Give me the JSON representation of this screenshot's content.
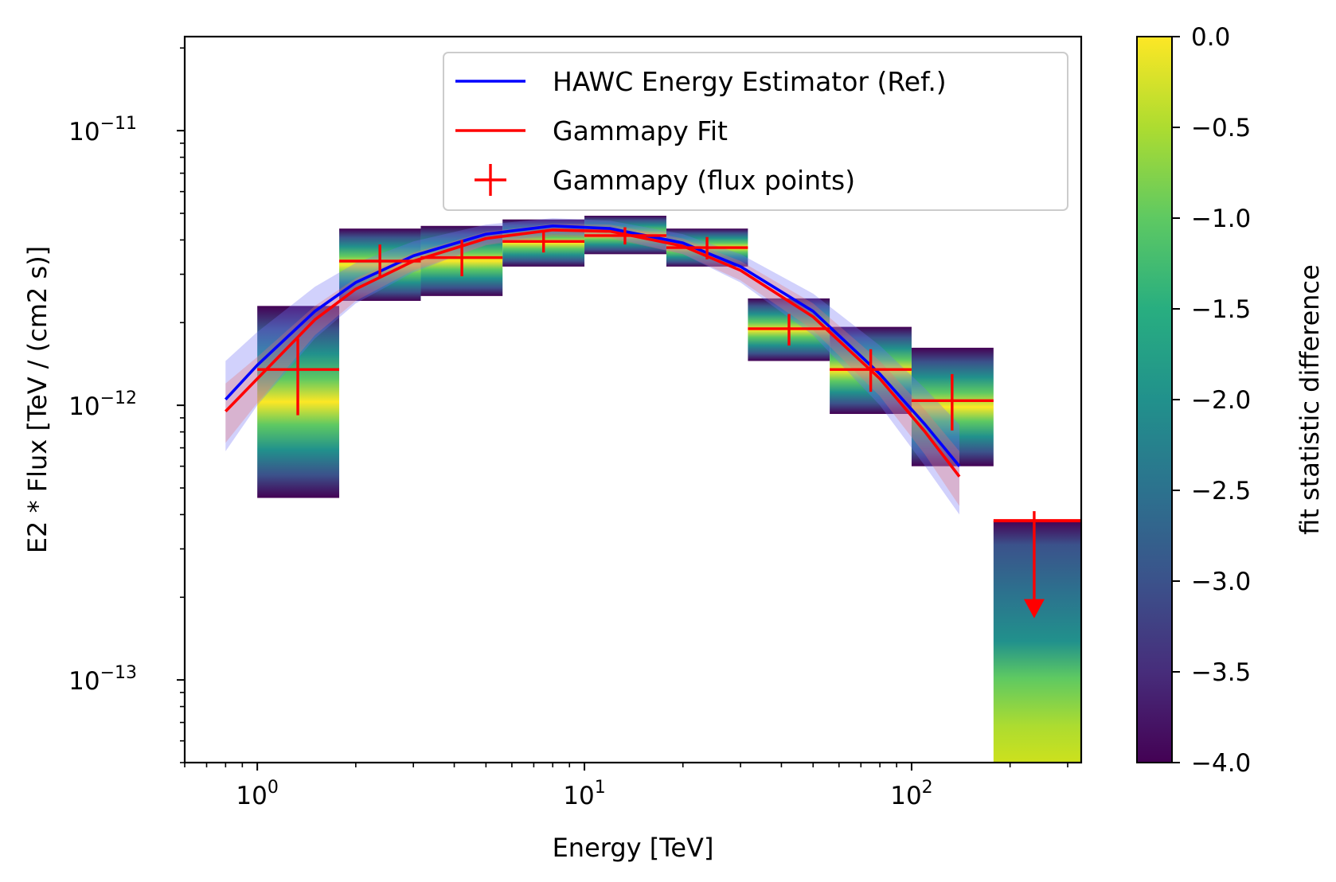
{
  "chart_data": {
    "type": "sed",
    "x_scale": "log",
    "y_scale": "log",
    "xlabel": "Energy [TeV]",
    "ylabel": "E2 * Flux [TeV / (cm2 s)]",
    "xlim": [
      0.6,
      330
    ],
    "ylim": [
      5e-14,
      2.2e-11
    ],
    "x_ticks": [
      {
        "value": 1,
        "base": "10",
        "exp": "0"
      },
      {
        "value": 10,
        "base": "10",
        "exp": "1"
      },
      {
        "value": 100,
        "base": "10",
        "exp": "2"
      }
    ],
    "y_ticks": [
      {
        "value": 1e-13,
        "base": "10",
        "exp": "−13"
      },
      {
        "value": 1e-12,
        "base": "10",
        "exp": "−12"
      },
      {
        "value": 1e-11,
        "base": "10",
        "exp": "−11"
      }
    ],
    "legend": {
      "placement": "top-right",
      "entries": [
        {
          "label": "HAWC Energy Estimator (Ref.)",
          "kind": "line",
          "color": "#0000ff"
        },
        {
          "label": "Gammapy Fit",
          "kind": "line",
          "color": "#ff0000"
        },
        {
          "label": "Gammapy (flux points)",
          "kind": "errorbar",
          "color": "#ff0000"
        }
      ]
    },
    "series": [
      {
        "name": "HAWC Energy Estimator (Ref.)",
        "type": "line",
        "color": "#0000ff",
        "band_color": "#6f6ff5",
        "x": [
          0.8,
          1.0,
          1.5,
          2.0,
          3.0,
          5.0,
          8.0,
          12.0,
          20.0,
          30.0,
          50.0,
          80.0,
          110.0,
          140.0
        ],
        "y": [
          1.05e-12,
          1.4e-12,
          2.2e-12,
          2.8e-12,
          3.5e-12,
          4.2e-12,
          4.5e-12,
          4.4e-12,
          3.9e-12,
          3.2e-12,
          2.2e-12,
          1.3e-12,
          8.5e-13,
          6e-13
        ],
        "band_lower": [
          6.8e-13,
          1e-12,
          1.75e-12,
          2.35e-12,
          3.05e-12,
          3.85e-12,
          4.2e-12,
          4.1e-12,
          3.55e-12,
          2.8e-12,
          1.8e-12,
          1e-12,
          6e-13,
          4e-13
        ],
        "band_upper": [
          1.45e-12,
          1.85e-12,
          2.7e-12,
          3.3e-12,
          3.95e-12,
          4.55e-12,
          4.8e-12,
          4.7e-12,
          4.2e-12,
          3.55e-12,
          2.55e-12,
          1.65e-12,
          1.15e-12,
          8.5e-13
        ]
      },
      {
        "name": "Gammapy Fit",
        "type": "line",
        "color": "#ff0000",
        "band_color": "#e57373",
        "x": [
          0.8,
          1.0,
          1.5,
          2.0,
          3.0,
          5.0,
          8.0,
          12.0,
          20.0,
          30.0,
          50.0,
          80.0,
          110.0,
          140.0
        ],
        "y": [
          9.5e-13,
          1.25e-12,
          2.05e-12,
          2.65e-12,
          3.35e-12,
          4.05e-12,
          4.35e-12,
          4.3e-12,
          3.8e-12,
          3.1e-12,
          2.1e-12,
          1.25e-12,
          8e-13,
          5.5e-13
        ],
        "band_lower": [
          7.3e-13,
          1.02e-12,
          1.8e-12,
          2.4e-12,
          3.1e-12,
          3.82e-12,
          4.12e-12,
          4.05e-12,
          3.55e-12,
          2.85e-12,
          1.88e-12,
          1.08e-12,
          6.6e-13,
          4.3e-13
        ],
        "band_upper": [
          1.2e-12,
          1.5e-12,
          2.3e-12,
          2.9e-12,
          3.6e-12,
          4.28e-12,
          4.58e-12,
          4.55e-12,
          4.05e-12,
          3.35e-12,
          2.35e-12,
          1.45e-12,
          9.6e-13,
          6.8e-13
        ]
      }
    ],
    "flux_points": [
      {
        "e": 1.33,
        "e_min": 1.0,
        "e_max": 1.78,
        "flux": 1.35e-12,
        "flux_err_lo": 9.2e-13,
        "flux_err_hi": 1.75e-12,
        "profile_min": 4.6e-13,
        "profile_max": 2.3e-12
      },
      {
        "e": 2.37,
        "e_min": 1.78,
        "e_max": 3.16,
        "flux": 3.35e-12,
        "flux_err_lo": 2.9e-12,
        "flux_err_hi": 3.85e-12,
        "profile_min": 2.4e-12,
        "profile_max": 4.4e-12
      },
      {
        "e": 4.22,
        "e_min": 3.16,
        "e_max": 5.62,
        "flux": 3.45e-12,
        "flux_err_lo": 2.95e-12,
        "flux_err_hi": 4e-12,
        "profile_min": 2.5e-12,
        "profile_max": 4.5e-12
      },
      {
        "e": 7.5,
        "e_min": 5.62,
        "e_max": 10.0,
        "flux": 3.95e-12,
        "flux_err_lo": 3.6e-12,
        "flux_err_hi": 4.35e-12,
        "profile_min": 3.2e-12,
        "profile_max": 4.75e-12
      },
      {
        "e": 13.3,
        "e_min": 10.0,
        "e_max": 17.8,
        "flux": 4.15e-12,
        "flux_err_lo": 3.85e-12,
        "flux_err_hi": 4.45e-12,
        "profile_min": 3.55e-12,
        "profile_max": 4.9e-12
      },
      {
        "e": 23.7,
        "e_min": 17.8,
        "e_max": 31.6,
        "flux": 3.75e-12,
        "flux_err_lo": 3.4e-12,
        "flux_err_hi": 4.1e-12,
        "profile_min": 3.2e-12,
        "profile_max": 4.4e-12
      },
      {
        "e": 42.2,
        "e_min": 31.6,
        "e_max": 56.2,
        "flux": 1.9e-12,
        "flux_err_lo": 1.65e-12,
        "flux_err_hi": 2.15e-12,
        "profile_min": 1.45e-12,
        "profile_max": 2.45e-12
      },
      {
        "e": 75.0,
        "e_min": 56.2,
        "e_max": 100.0,
        "flux": 1.35e-12,
        "flux_err_lo": 1.12e-12,
        "flux_err_hi": 1.6e-12,
        "profile_min": 9.3e-13,
        "profile_max": 1.93e-12
      },
      {
        "e": 133.0,
        "e_min": 100.0,
        "e_max": 178.0,
        "flux": 1.04e-12,
        "flux_err_lo": 8.1e-13,
        "flux_err_hi": 1.3e-12,
        "profile_min": 6e-13,
        "profile_max": 1.62e-12
      }
    ],
    "upper_limits": [
      {
        "e": 237.0,
        "e_min": 178.0,
        "e_max": 330.0,
        "flux_ul": 3.8e-13,
        "arrow_to": 1.7e-13,
        "profile_min": 5e-14,
        "profile_max": 3.8e-13
      }
    ],
    "colorbar": {
      "label": "fit statistic difference",
      "colormap": "viridis",
      "range": [
        -4.0,
        0.0
      ],
      "ticks": [
        "0.0",
        "−0.5",
        "−1.0",
        "−1.5",
        "−2.0",
        "−2.5",
        "−3.0",
        "−3.5",
        "−4.0"
      ],
      "tick_values": [
        0.0,
        -0.5,
        -1.0,
        -1.5,
        -2.0,
        -2.5,
        -3.0,
        -3.5,
        -4.0
      ]
    }
  }
}
